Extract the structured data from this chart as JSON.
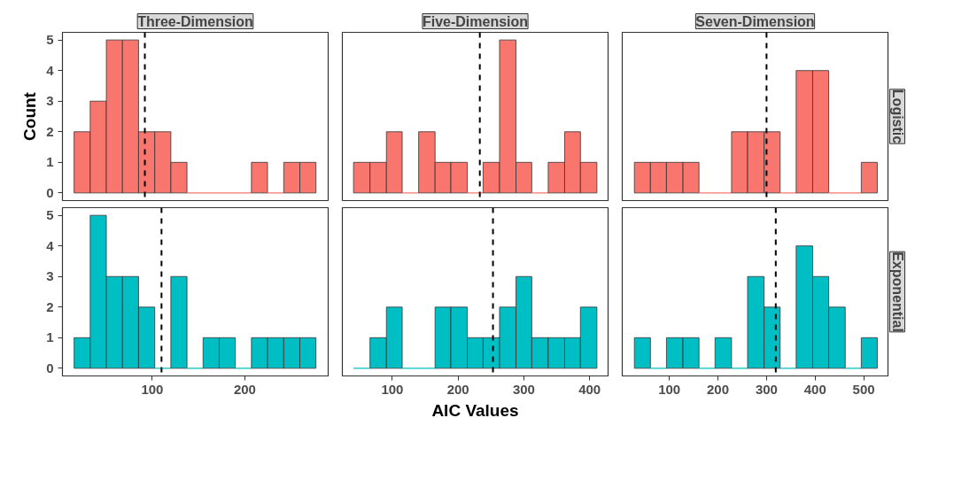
{
  "chart_data": [
    {
      "type": "histogram",
      "title": "Three-Dimension",
      "ylabel": "Count",
      "color": "#f8766d",
      "tick_labels": "y",
      "bins": [
        15.6,
        33.0,
        50.4,
        67.8,
        85.2,
        102.7,
        120.1,
        137.5,
        154.9,
        172.3,
        189.7,
        207.1,
        224.5,
        242.0,
        259.4,
        276.8
      ],
      "values": [
        2,
        3,
        5,
        5,
        2,
        2,
        1,
        0,
        0,
        0,
        0,
        1,
        0,
        1,
        1
      ],
      "xlim": [
        3,
        290
      ],
      "xticks": [
        100,
        200
      ],
      "ylim": [
        -0.25,
        5.25
      ],
      "yticks": [
        0,
        1,
        2,
        3,
        4,
        5
      ],
      "ref_lines": [
        {
          "axis": "x",
          "value": 92,
          "line_style": "dashed",
          "color": "#000000"
        }
      ]
    },
    {
      "type": "histogram",
      "title": "Five-Dimension",
      "color": "#f8766d",
      "tick_labels": false,
      "bins": [
        41,
        66,
        91,
        115,
        140,
        165,
        189,
        214,
        238,
        263,
        288,
        312,
        337,
        362,
        386,
        411
      ],
      "values": [
        1,
        1,
        2,
        0,
        2,
        1,
        1,
        0,
        1,
        5,
        1,
        0,
        1,
        2,
        1
      ],
      "xlim": [
        24,
        428
      ],
      "xticks": [
        100,
        200,
        300,
        400
      ],
      "ylim": [
        -0.25,
        5.25
      ],
      "yticks": [
        0,
        1,
        2,
        3,
        4,
        5
      ],
      "ref_lines": [
        {
          "axis": "x",
          "value": 233,
          "line_style": "dashed",
          "color": "#000000"
        }
      ]
    },
    {
      "type": "histogram",
      "title": "Seven-Dimension",
      "y2label": "Logistic",
      "color": "#f8766d",
      "tick_labels": false,
      "bins": [
        28,
        61,
        94,
        128,
        161,
        194,
        228,
        261,
        295,
        328,
        361,
        395,
        428,
        462,
        495,
        528
      ],
      "values": [
        1,
        1,
        1,
        1,
        0,
        0,
        2,
        2,
        2,
        0,
        4,
        4,
        0,
        0,
        1
      ],
      "xlim": [
        3,
        550
      ],
      "xticks": [
        100,
        200,
        300,
        400,
        500
      ],
      "ylim": [
        -0.25,
        5.25
      ],
      "yticks": [
        0,
        1,
        2,
        3,
        4,
        5
      ],
      "ref_lines": [
        {
          "axis": "x",
          "value": 300,
          "line_style": "dashed",
          "color": "#000000"
        }
      ]
    },
    {
      "type": "histogram",
      "color": "#00bfc4",
      "bins": [
        15.6,
        33.0,
        50.4,
        67.8,
        85.2,
        102.7,
        120.1,
        137.5,
        154.9,
        172.3,
        189.7,
        207.1,
        224.5,
        242.0,
        259.4,
        276.8
      ],
      "values": [
        1,
        5,
        3,
        3,
        2,
        0,
        3,
        0,
        1,
        1,
        0,
        1,
        1,
        1,
        1
      ],
      "xlim": [
        3,
        290
      ],
      "xticks": [
        100,
        200
      ],
      "ylim": [
        -0.25,
        5.25
      ],
      "yticks": [
        0,
        1,
        2,
        3,
        4,
        5
      ],
      "ref_lines": [
        {
          "axis": "x",
          "value": 110,
          "line_style": "dashed",
          "color": "#000000"
        }
      ]
    },
    {
      "type": "histogram",
      "xlabel": "AIC Values",
      "color": "#00bfc4",
      "tick_labels": "x",
      "bins": [
        41,
        66,
        91,
        115,
        140,
        165,
        189,
        214,
        238,
        263,
        288,
        312,
        337,
        362,
        386,
        411
      ],
      "values": [
        0,
        1,
        2,
        0,
        0,
        2,
        2,
        1,
        1,
        2,
        3,
        1,
        1,
        1,
        2
      ],
      "xlim": [
        24,
        428
      ],
      "xticks": [
        100,
        200,
        300,
        400
      ],
      "ylim": [
        -0.25,
        5.25
      ],
      "yticks": [
        0,
        1,
        2,
        3,
        4,
        5
      ],
      "ref_lines": [
        {
          "axis": "x",
          "value": 253,
          "line_style": "dashed",
          "color": "#000000"
        }
      ]
    },
    {
      "type": "histogram",
      "y2label": "Exponential",
      "color": "#00bfc4",
      "tick_labels": "x",
      "bins": [
        28,
        61,
        94,
        128,
        161,
        194,
        228,
        261,
        295,
        328,
        361,
        395,
        428,
        462,
        495,
        528
      ],
      "values": [
        1,
        0,
        1,
        1,
        0,
        1,
        0,
        3,
        2,
        0,
        4,
        3,
        2,
        0,
        1
      ],
      "xlim": [
        3,
        550
      ],
      "xticks": [
        100,
        200,
        300,
        400,
        500
      ],
      "ylim": [
        -0.25,
        5.25
      ],
      "yticks": [
        0,
        1,
        2,
        3,
        4,
        5
      ],
      "ref_lines": [
        {
          "axis": "x",
          "value": 319,
          "line_style": "dashed",
          "color": "#000000"
        }
      ]
    }
  ]
}
